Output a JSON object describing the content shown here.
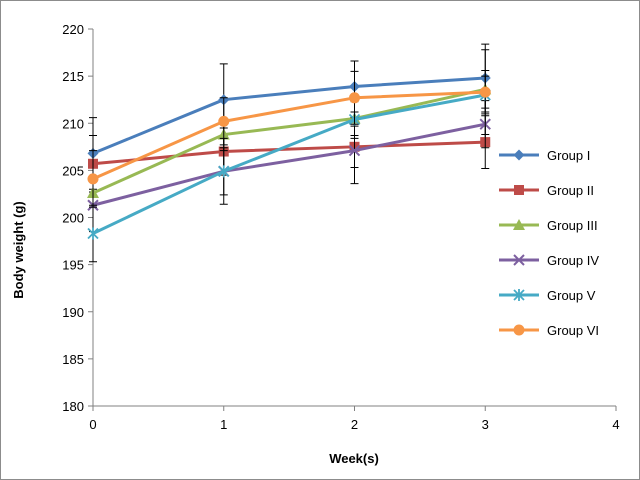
{
  "chart_data": {
    "type": "line",
    "title": "",
    "xlabel": "Week(s)",
    "ylabel": "Body weight  (g)",
    "x": [
      0,
      1,
      2,
      3
    ],
    "xlim": [
      0,
      4
    ],
    "ylim": [
      180,
      220
    ],
    "xticks": [
      "0",
      "1",
      "2",
      "3",
      "4"
    ],
    "yticks": [
      "180",
      "185",
      "190",
      "195",
      "200",
      "205",
      "210",
      "215",
      "220"
    ],
    "grid": false,
    "legend_position": "right",
    "series": [
      {
        "name": "Group I",
        "color": "#4a7ebb",
        "marker": "diamond",
        "values": [
          206.8,
          212.5,
          213.9,
          214.8
        ],
        "errors": [
          3.8,
          3.8,
          2.7,
          3.6
        ]
      },
      {
        "name": "Group II",
        "color": "#be4b48",
        "marker": "square",
        "values": [
          205.7,
          207.0,
          207.5,
          208.0
        ],
        "errors": [
          3.0,
          2.5,
          2.2,
          2.8
        ]
      },
      {
        "name": "Group III",
        "color": "#98b954",
        "marker": "triangle",
        "values": [
          202.6,
          208.8,
          210.5,
          213.6
        ],
        "errors": [
          1.5,
          1.7,
          1.8,
          2.0
        ]
      },
      {
        "name": "Group IV",
        "color": "#7d60a0",
        "marker": "x",
        "values": [
          201.3,
          204.9,
          207.1,
          209.9
        ],
        "errors": [
          2.8,
          3.5,
          3.5,
          2.5
        ]
      },
      {
        "name": "Group V",
        "color": "#46aac5",
        "marker": "star",
        "values": [
          198.3,
          204.9,
          210.4,
          213.0
        ],
        "errors": [
          3.0,
          2.5,
          2.0,
          2.0
        ]
      },
      {
        "name": "Group VI",
        "color": "#f79646",
        "marker": "circle",
        "values": [
          204.1,
          210.2,
          212.7,
          213.3
        ],
        "errors": [
          3.0,
          2.5,
          2.8,
          4.5
        ]
      }
    ]
  }
}
